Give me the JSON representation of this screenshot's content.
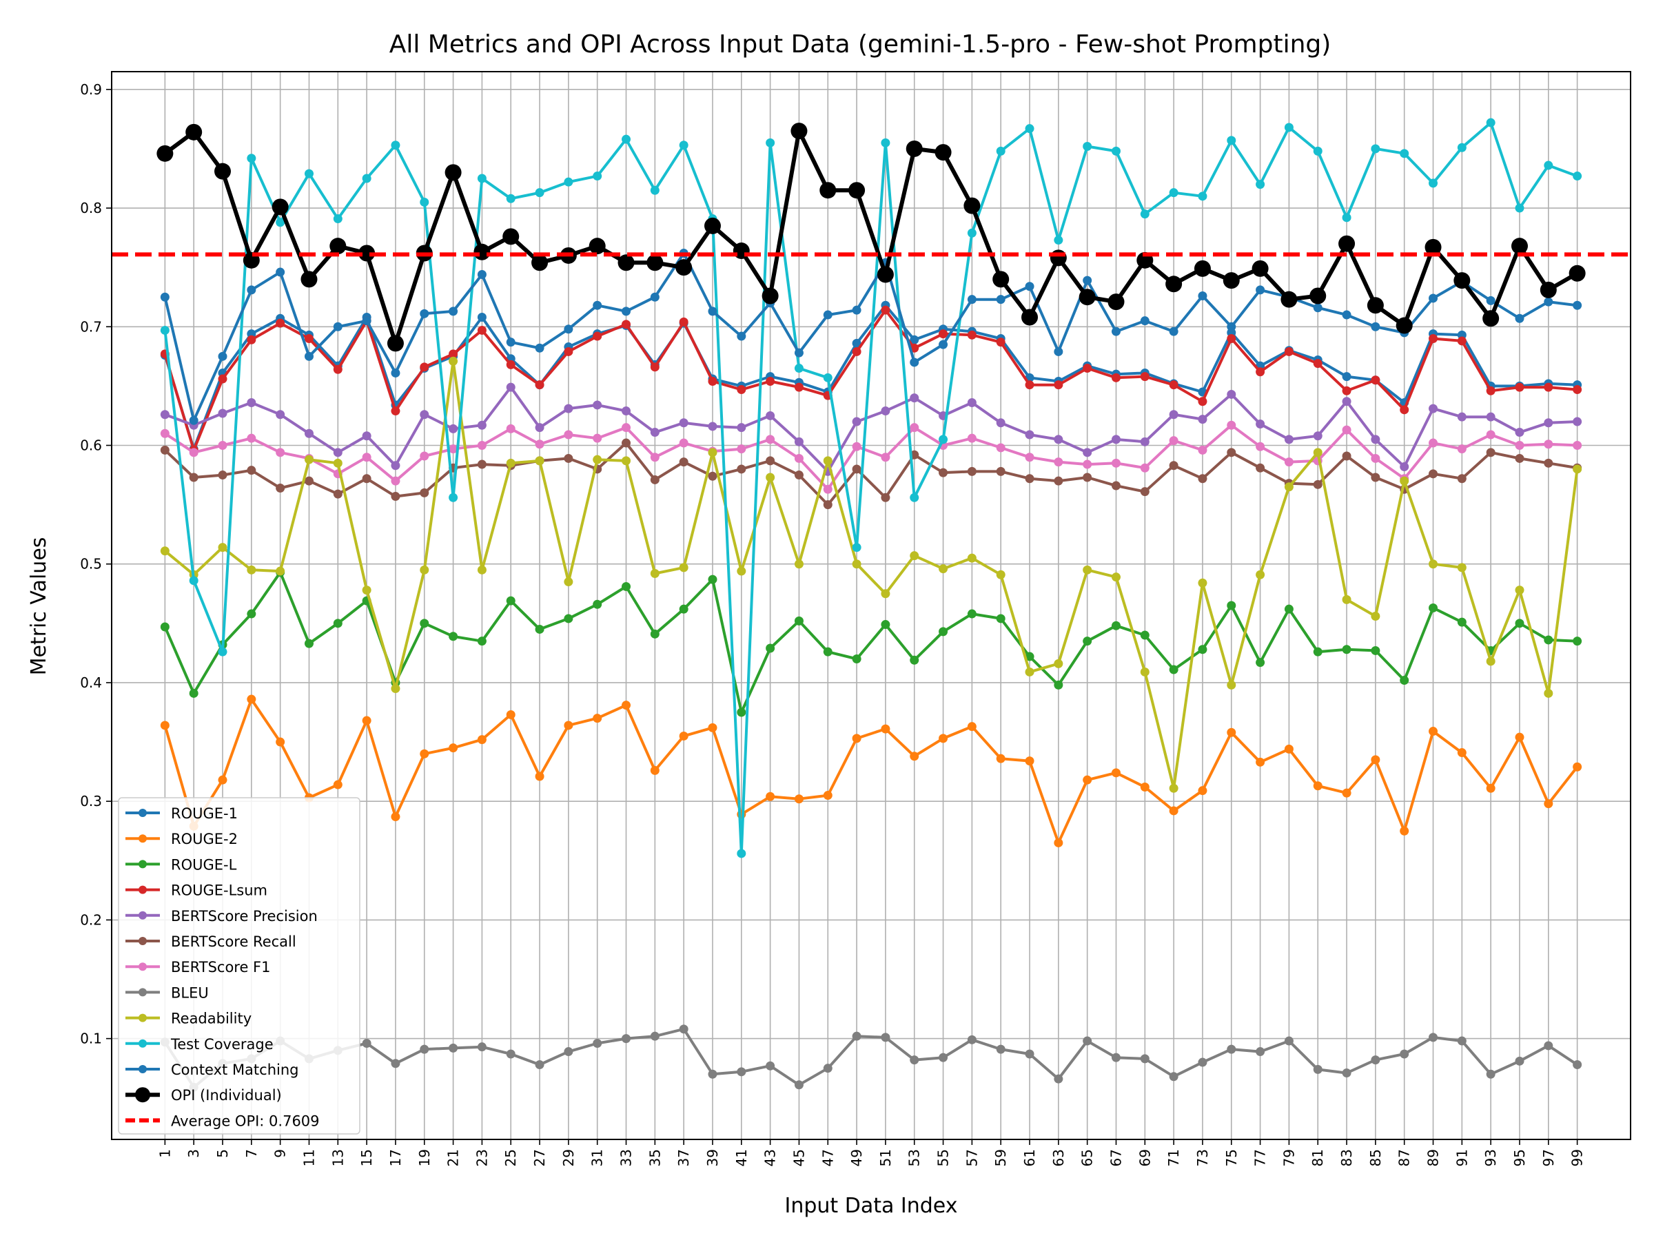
{
  "chart_data": {
    "type": "line",
    "title": "All Metrics and OPI Across Input Data (gemini-1.5-pro - Few-shot Prompting)",
    "xlabel": "Input Data Index",
    "ylabel": "Metric Values",
    "ylim": [
      0.015,
      0.915
    ],
    "yticks": [
      "0.1",
      "0.2",
      "0.3",
      "0.4",
      "0.5",
      "0.6",
      "0.7",
      "0.8",
      "0.9"
    ],
    "grid": true,
    "legend_position": "lower-left",
    "x": [
      1,
      3,
      5,
      7,
      9,
      11,
      13,
      15,
      17,
      19,
      21,
      23,
      25,
      27,
      29,
      31,
      33,
      35,
      37,
      39,
      41,
      43,
      45,
      47,
      49,
      51,
      53,
      55,
      57,
      59,
      61,
      63,
      65,
      67,
      69,
      71,
      73,
      75,
      77,
      79,
      81,
      83,
      85,
      87,
      89,
      91,
      93,
      95,
      97,
      99
    ],
    "series": [
      {
        "name": "ROUGE-1",
        "color": "#1f77b4",
        "values": [
          0.676,
          0.597,
          0.661,
          0.694,
          0.707,
          0.693,
          0.667,
          0.708,
          0.634,
          0.665,
          0.675,
          0.708,
          0.673,
          0.651,
          0.683,
          0.694,
          0.701,
          0.668,
          0.703,
          0.656,
          0.65,
          0.658,
          0.653,
          0.645,
          0.686,
          0.718,
          0.689,
          0.698,
          0.696,
          0.69,
          0.657,
          0.654,
          0.667,
          0.66,
          0.661,
          0.652,
          0.645,
          0.695,
          0.667,
          0.68,
          0.672,
          0.658,
          0.655,
          0.636,
          0.694,
          0.693,
          0.65,
          0.65,
          0.652,
          0.651
        ]
      },
      {
        "name": "ROUGE-2",
        "color": "#ff7f0e",
        "values": [
          0.364,
          0.279,
          0.318,
          0.386,
          0.35,
          0.303,
          0.314,
          0.368,
          0.287,
          0.34,
          0.345,
          0.352,
          0.373,
          0.321,
          0.364,
          0.37,
          0.381,
          0.326,
          0.355,
          0.362,
          0.289,
          0.304,
          0.302,
          0.305,
          0.353,
          0.361,
          0.338,
          0.353,
          0.363,
          0.336,
          0.334,
          0.265,
          0.318,
          0.324,
          0.312,
          0.292,
          0.309,
          0.358,
          0.333,
          0.344,
          0.313,
          0.307,
          0.335,
          0.275,
          0.359,
          0.341,
          0.311,
          0.354,
          0.298,
          0.329
        ]
      },
      {
        "name": "ROUGE-L",
        "color": "#2ca02c",
        "values": [
          0.447,
          0.391,
          0.432,
          0.458,
          0.493,
          0.433,
          0.45,
          0.469,
          0.4,
          0.45,
          0.439,
          0.435,
          0.469,
          0.445,
          0.454,
          0.466,
          0.481,
          0.441,
          0.462,
          0.487,
          0.375,
          0.429,
          0.452,
          0.426,
          0.42,
          0.449,
          0.419,
          0.443,
          0.458,
          0.454,
          0.422,
          0.398,
          0.435,
          0.448,
          0.44,
          0.411,
          0.428,
          0.465,
          0.417,
          0.462,
          0.426,
          0.428,
          0.427,
          0.402,
          0.463,
          0.451,
          0.427,
          0.45,
          0.436,
          0.435
        ]
      },
      {
        "name": "ROUGE-Lsum",
        "color": "#d62728",
        "values": [
          0.677,
          0.596,
          0.656,
          0.689,
          0.703,
          0.69,
          0.664,
          0.705,
          0.629,
          0.666,
          0.677,
          0.697,
          0.668,
          0.651,
          0.679,
          0.692,
          0.702,
          0.666,
          0.704,
          0.654,
          0.647,
          0.654,
          0.649,
          0.642,
          0.679,
          0.714,
          0.682,
          0.694,
          0.693,
          0.687,
          0.651,
          0.651,
          0.665,
          0.657,
          0.658,
          0.651,
          0.637,
          0.69,
          0.662,
          0.679,
          0.669,
          0.646,
          0.655,
          0.63,
          0.69,
          0.688,
          0.646,
          0.649,
          0.649,
          0.647
        ]
      },
      {
        "name": "BERTScore Precision",
        "color": "#9467bd",
        "values": [
          0.626,
          0.617,
          0.627,
          0.636,
          0.626,
          0.61,
          0.594,
          0.608,
          0.583,
          0.626,
          0.614,
          0.617,
          0.649,
          0.615,
          0.631,
          0.634,
          0.629,
          0.611,
          0.619,
          0.616,
          0.615,
          0.625,
          0.603,
          0.578,
          0.62,
          0.629,
          0.64,
          0.625,
          0.636,
          0.619,
          0.609,
          0.605,
          0.594,
          0.605,
          0.603,
          0.626,
          0.622,
          0.643,
          0.618,
          0.605,
          0.608,
          0.637,
          0.605,
          0.582,
          0.631,
          0.624,
          0.624,
          0.611,
          0.619,
          0.62
        ]
      },
      {
        "name": "BERTScore Recall",
        "color": "#8c564b",
        "values": [
          0.596,
          0.573,
          0.575,
          0.579,
          0.564,
          0.57,
          0.559,
          0.572,
          0.557,
          0.56,
          0.581,
          0.584,
          0.583,
          0.587,
          0.589,
          0.58,
          0.602,
          0.571,
          0.586,
          0.574,
          0.58,
          0.587,
          0.575,
          0.55,
          0.58,
          0.556,
          0.592,
          0.577,
          0.578,
          0.578,
          0.572,
          0.57,
          0.573,
          0.566,
          0.561,
          0.583,
          0.572,
          0.594,
          0.581,
          0.568,
          0.567,
          0.591,
          0.573,
          0.563,
          0.576,
          0.572,
          0.594,
          0.589,
          0.585,
          0.581
        ]
      },
      {
        "name": "BERTScore F1",
        "color": "#e377c2",
        "values": [
          0.61,
          0.594,
          0.6,
          0.606,
          0.594,
          0.589,
          0.576,
          0.59,
          0.57,
          0.591,
          0.597,
          0.6,
          0.614,
          0.601,
          0.609,
          0.606,
          0.615,
          0.59,
          0.602,
          0.595,
          0.597,
          0.605,
          0.589,
          0.563,
          0.599,
          0.59,
          0.615,
          0.6,
          0.606,
          0.598,
          0.59,
          0.586,
          0.584,
          0.585,
          0.581,
          0.604,
          0.596,
          0.617,
          0.599,
          0.586,
          0.587,
          0.613,
          0.589,
          0.572,
          0.602,
          0.597,
          0.609,
          0.6,
          0.601,
          0.6
        ]
      },
      {
        "name": "BLEU",
        "color": "#7f7f7f",
        "values": [
          0.097,
          0.059,
          0.079,
          0.083,
          0.098,
          0.083,
          0.09,
          0.096,
          0.079,
          0.091,
          0.092,
          0.093,
          0.087,
          0.078,
          0.089,
          0.096,
          0.1,
          0.102,
          0.108,
          0.07,
          0.072,
          0.077,
          0.061,
          0.075,
          0.102,
          0.101,
          0.082,
          0.084,
          0.099,
          0.091,
          0.087,
          0.066,
          0.098,
          0.084,
          0.083,
          0.068,
          0.08,
          0.091,
          0.089,
          0.098,
          0.074,
          0.071,
          0.082,
          0.087,
          0.101,
          0.098,
          0.07,
          0.081,
          0.094,
          0.078
        ]
      },
      {
        "name": "Readability",
        "color": "#bcbd22",
        "values": [
          0.511,
          0.491,
          0.514,
          0.495,
          0.494,
          0.588,
          0.585,
          0.478,
          0.395,
          0.495,
          0.671,
          0.495,
          0.585,
          0.587,
          0.485,
          0.588,
          0.587,
          0.492,
          0.497,
          0.594,
          0.494,
          0.573,
          0.5,
          0.587,
          0.5,
          0.475,
          0.507,
          0.496,
          0.505,
          0.491,
          0.409,
          0.416,
          0.495,
          0.489,
          0.409,
          0.311,
          0.484,
          0.398,
          0.491,
          0.565,
          0.594,
          0.47,
          0.456,
          0.57,
          0.5,
          0.497,
          0.418,
          0.478,
          0.391,
          0.58
        ]
      },
      {
        "name": "Test Coverage",
        "color": "#17becf",
        "values": [
          0.697,
          0.486,
          0.426,
          0.842,
          0.788,
          0.829,
          0.791,
          0.825,
          0.853,
          0.805,
          0.556,
          0.825,
          0.808,
          0.813,
          0.822,
          0.827,
          0.858,
          0.815,
          0.853,
          0.791,
          0.256,
          0.855,
          0.665,
          0.657,
          0.514,
          0.855,
          0.556,
          0.605,
          0.779,
          0.848,
          0.867,
          0.773,
          0.852,
          0.848,
          0.795,
          0.813,
          0.81,
          0.857,
          0.82,
          0.868,
          0.848,
          0.792,
          0.85,
          0.846,
          0.821,
          0.851,
          0.872,
          0.8,
          0.836,
          0.827
        ]
      },
      {
        "name": "Context Matching",
        "color": "#1f77b4",
        "values": [
          0.725,
          0.621,
          0.675,
          0.731,
          0.746,
          0.675,
          0.7,
          0.705,
          0.661,
          0.711,
          0.713,
          0.744,
          0.687,
          0.682,
          0.698,
          0.718,
          0.713,
          0.725,
          0.762,
          0.713,
          0.692,
          0.72,
          0.678,
          0.71,
          0.714,
          0.754,
          0.67,
          0.685,
          0.723,
          0.723,
          0.734,
          0.679,
          0.739,
          0.696,
          0.705,
          0.696,
          0.726,
          0.7,
          0.731,
          0.725,
          0.716,
          0.71,
          0.7,
          0.695,
          0.724,
          0.738,
          0.722,
          0.707,
          0.721,
          0.718
        ]
      },
      {
        "name": "OPI (Individual)",
        "color": "#000000",
        "values": [
          0.846,
          0.864,
          0.831,
          0.756,
          0.801,
          0.74,
          0.768,
          0.762,
          0.686,
          0.762,
          0.83,
          0.763,
          0.776,
          0.754,
          0.76,
          0.768,
          0.754,
          0.754,
          0.75,
          0.785,
          0.764,
          0.726,
          0.865,
          0.815,
          0.815,
          0.744,
          0.85,
          0.847,
          0.802,
          0.74,
          0.708,
          0.758,
          0.725,
          0.721,
          0.756,
          0.736,
          0.749,
          0.739,
          0.749,
          0.723,
          0.726,
          0.77,
          0.718,
          0.701,
          0.767,
          0.739,
          0.707,
          0.768,
          0.731,
          0.745
        ]
      }
    ],
    "reference_line": {
      "name": "Average OPI: 0.7609",
      "value": 0.7609,
      "color": "#ff0000"
    }
  }
}
